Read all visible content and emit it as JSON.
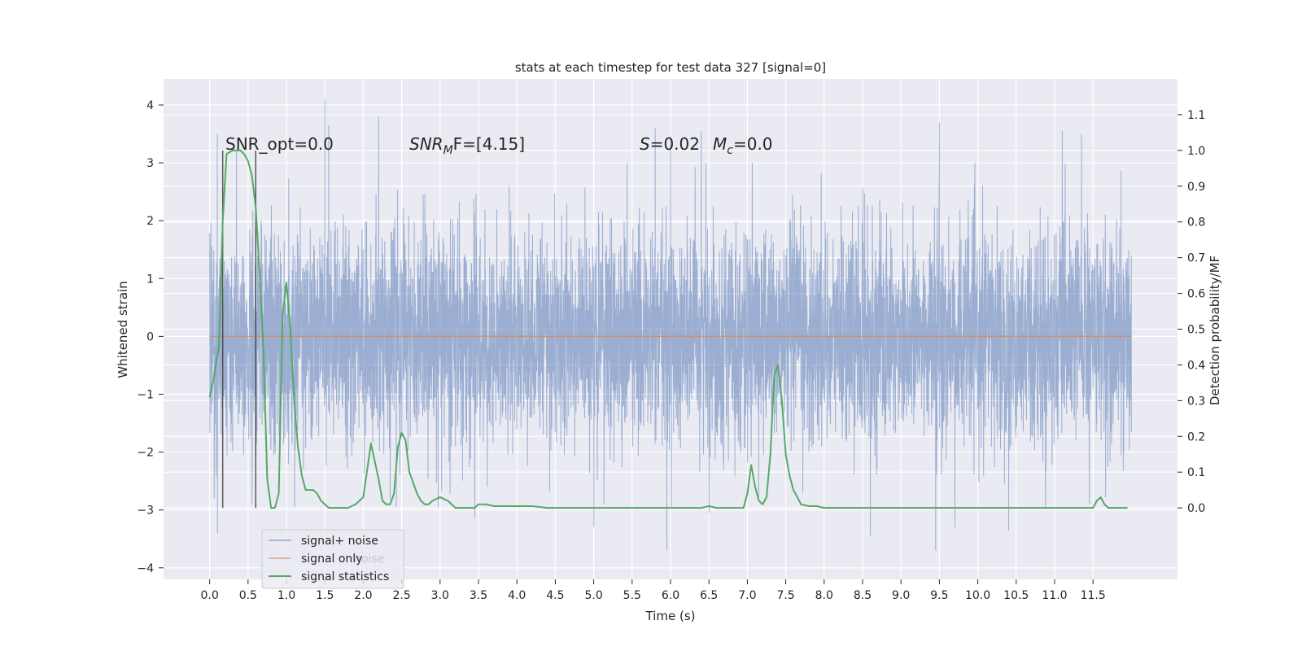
{
  "chart_data": {
    "type": "line",
    "title": "stats at each timestep for test data 327 [signal=0]",
    "xlabel": "Time (s)",
    "ylabel_left": "Whitened strain",
    "ylabel_right": "Detection probability/MF",
    "xlim": [
      -0.6,
      12.6
    ],
    "ylim_left": [
      -4.2,
      4.45
    ],
    "ylim_right": [
      -0.2,
      1.2
    ],
    "x_ticks": [
      "0.0",
      "0.5",
      "1.0",
      "1.5",
      "2.0",
      "2.5",
      "3.0",
      "3.5",
      "4.0",
      "4.5",
      "5.0",
      "5.5",
      "6.0",
      "6.5",
      "7.0",
      "7.5",
      "8.0",
      "8.5",
      "9.0",
      "9.5",
      "10.0",
      "10.5",
      "11.0",
      "11.5"
    ],
    "y_ticks_left": [
      "4",
      "3",
      "2",
      "1",
      "0",
      "−1",
      "−2",
      "−3",
      "−4"
    ],
    "y_ticks_right": [
      "1.1",
      "1.0",
      "0.9",
      "0.8",
      "0.7",
      "0.6",
      "0.5",
      "0.4",
      "0.3",
      "0.2",
      "0.1",
      "0.0"
    ],
    "grid": true,
    "legend_position": "lower-left",
    "annotations": {
      "snr_opt": "SNR_opt=0.0",
      "snr_mf_prefix": "SNR",
      "snr_mf_sub": "M",
      "snr_mf_suffix": "F=[4.15]",
      "s_prefix": "S",
      "s_value": "=0.02",
      "mc_prefix": "M",
      "mc_sub": "c",
      "mc_value": "=0.0"
    },
    "series": [
      {
        "name": "signal+ noise",
        "axis": "left",
        "color": "#4c72b0",
        "kind": "noise",
        "x_range": [
          0.0,
          12.0
        ],
        "sigma": 0.9,
        "peaks": [
          [
            0.1,
            3.5
          ],
          [
            0.35,
            3.2
          ],
          [
            1.5,
            4.1
          ],
          [
            1.55,
            3.65
          ],
          [
            2.2,
            3.8
          ],
          [
            5.8,
            3.6
          ],
          [
            6.0,
            3.45
          ],
          [
            6.4,
            3.55
          ],
          [
            9.5,
            3.7
          ],
          [
            11.1,
            3.55
          ],
          [
            11.35,
            3.5
          ]
        ],
        "troughs": [
          [
            0.1,
            -3.4
          ],
          [
            0.55,
            -2.9
          ],
          [
            3.45,
            -3.15
          ],
          [
            5.0,
            -3.3
          ],
          [
            5.95,
            -3.7
          ],
          [
            6.5,
            -3.05
          ],
          [
            8.6,
            -3.45
          ],
          [
            9.45,
            -3.7
          ],
          [
            9.7,
            -3.3
          ],
          [
            10.4,
            -3.35
          ],
          [
            11.45,
            -2.9
          ]
        ]
      },
      {
        "name": "signal only",
        "axis": "left",
        "color": "#dd8452",
        "x": [
          0.0,
          12.0
        ],
        "y": [
          0.0,
          0.0
        ]
      },
      {
        "name": "signal statistics",
        "axis": "right",
        "color": "#55a868",
        "x": [
          0.0,
          0.05,
          0.12,
          0.17,
          0.22,
          0.3,
          0.4,
          0.45,
          0.5,
          0.55,
          0.6,
          0.65,
          0.7,
          0.75,
          0.8,
          0.85,
          0.9,
          0.95,
          1.0,
          1.05,
          1.1,
          1.15,
          1.2,
          1.25,
          1.3,
          1.35,
          1.4,
          1.45,
          1.5,
          1.55,
          1.6,
          1.7,
          1.8,
          1.9,
          2.0,
          2.1,
          2.2,
          2.25,
          2.3,
          2.35,
          2.4,
          2.45,
          2.5,
          2.55,
          2.6,
          2.7,
          2.75,
          2.8,
          2.85,
          2.9,
          3.0,
          3.1,
          3.15,
          3.2,
          3.25,
          3.3,
          3.35,
          3.4,
          3.45,
          3.5,
          3.6,
          3.7,
          3.8,
          3.9,
          4.0,
          4.2,
          4.4,
          4.6,
          4.8,
          5.0,
          5.2,
          5.4,
          5.6,
          5.8,
          6.0,
          6.2,
          6.4,
          6.5,
          6.6,
          6.8,
          6.95,
          7.0,
          7.05,
          7.1,
          7.15,
          7.2,
          7.25,
          7.3,
          7.35,
          7.4,
          7.45,
          7.5,
          7.55,
          7.6,
          7.65,
          7.7,
          7.8,
          7.9,
          8.0,
          8.2,
          8.5,
          9.0,
          10.0,
          11.0,
          11.5,
          11.55,
          11.6,
          11.65,
          11.7,
          11.8,
          11.9,
          11.95
        ],
        "y": [
          0.31,
          0.36,
          0.45,
          0.8,
          0.99,
          1.0,
          1.0,
          0.99,
          0.97,
          0.93,
          0.84,
          0.66,
          0.44,
          0.08,
          0.0,
          0.0,
          0.04,
          0.54,
          0.63,
          0.5,
          0.3,
          0.17,
          0.09,
          0.05,
          0.05,
          0.05,
          0.04,
          0.02,
          0.01,
          0.0,
          0.0,
          0.0,
          0.0,
          0.01,
          0.03,
          0.18,
          0.08,
          0.02,
          0.01,
          0.01,
          0.04,
          0.17,
          0.21,
          0.19,
          0.1,
          0.04,
          0.02,
          0.01,
          0.01,
          0.02,
          0.03,
          0.02,
          0.01,
          0.0,
          0.0,
          0.0,
          0.0,
          0.0,
          0.0,
          0.01,
          0.01,
          0.005,
          0.005,
          0.005,
          0.005,
          0.005,
          0.0,
          0.0,
          0.0,
          0.0,
          0.0,
          0.0,
          0.0,
          0.0,
          0.0,
          0.0,
          0.0,
          0.005,
          0.0,
          0.0,
          0.0,
          0.04,
          0.12,
          0.06,
          0.02,
          0.01,
          0.03,
          0.15,
          0.37,
          0.4,
          0.3,
          0.15,
          0.09,
          0.05,
          0.03,
          0.01,
          0.005,
          0.005,
          0.0,
          0.0,
          0.0,
          0.0,
          0.0,
          0.0,
          0.0,
          0.02,
          0.03,
          0.01,
          0.0,
          0.0,
          0.0,
          0.0
        ]
      }
    ],
    "markers": {
      "color": "#333333",
      "x": [
        0.17,
        0.6
      ]
    },
    "legend": {
      "items": [
        "signal+ noise",
        "signal only",
        "signal statistics"
      ],
      "ghost_text": "noise"
    }
  }
}
